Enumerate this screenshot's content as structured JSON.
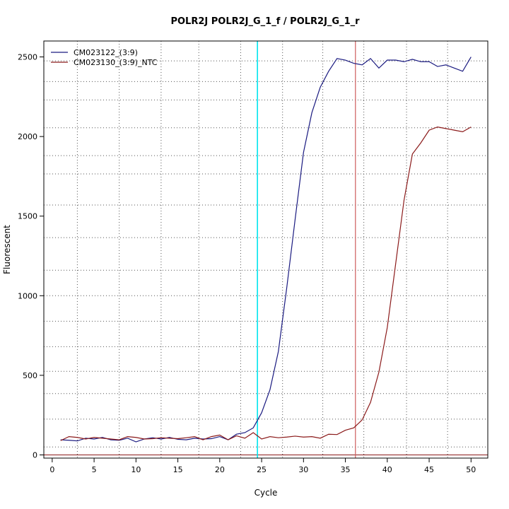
{
  "chart_data": {
    "type": "line",
    "title": "POLR2J  POLR2J_G_1_f / POLR2J_G_1_r",
    "xlabel": "Cycle",
    "ylabel": "Fluorescent",
    "xlim": [
      -1,
      52
    ],
    "ylim": [
      -20,
      2600
    ],
    "x_ticks": [
      0,
      5,
      10,
      15,
      20,
      25,
      30,
      35,
      40,
      45,
      50
    ],
    "x_tick_labels": [
      "0",
      "5",
      "10",
      "15",
      "20",
      "25",
      "30",
      "35",
      "40",
      "45",
      "50"
    ],
    "y_ticks": [
      0,
      500,
      1000,
      1500,
      2000,
      2500
    ],
    "y_tick_labels": [
      "0",
      "500",
      "1000",
      "1500",
      "2000",
      "2500"
    ],
    "grid": true,
    "grid_x": [
      3,
      8,
      13,
      17.5,
      22.5,
      27.5,
      32.3,
      37.2,
      42.3,
      47.2
    ],
    "grid_y": [
      50,
      225,
      385,
      525,
      680,
      840,
      1000,
      1160,
      1365,
      1570,
      1765,
      1880,
      2055,
      2230,
      2345,
      2475
    ],
    "legend_position": "top-left",
    "colors": {
      "series1": "#1a1a80",
      "series2": "#8b1a1a",
      "threshold_cyan": "#00e5ee",
      "threshold_red": "#cd5c5c",
      "baseline": "#8b1a1a"
    },
    "threshold_lines": [
      24.5,
      36.2
    ],
    "baseline_y": 0,
    "x": [
      1,
      2,
      3,
      4,
      5,
      6,
      7,
      8,
      9,
      10,
      11,
      12,
      13,
      14,
      15,
      16,
      17,
      18,
      19,
      20,
      21,
      22,
      23,
      24,
      25,
      26,
      27,
      28,
      29,
      30,
      31,
      32,
      33,
      34,
      35,
      36,
      37,
      38,
      39,
      40,
      41,
      42,
      43,
      44,
      45,
      46,
      47,
      48,
      49,
      50
    ],
    "series": [
      {
        "name": "CM023122_(3:9)",
        "values": [
          95,
          92,
          88,
          105,
          100,
          110,
          95,
          92,
          105,
          82,
          100,
          108,
          100,
          110,
          98,
          95,
          105,
          100,
          102,
          115,
          95,
          130,
          140,
          170,
          265,
          410,
          650,
          1050,
          1480,
          1900,
          2150,
          2310,
          2410,
          2490,
          2480,
          2460,
          2450,
          2490,
          2430,
          2480,
          2480,
          2470,
          2485,
          2470,
          2470,
          2440,
          2450,
          2430,
          2410,
          2500
        ]
      },
      {
        "name": "CM023130_(3:9)_NTC",
        "values": [
          90,
          115,
          110,
          100,
          110,
          105,
          100,
          95,
          115,
          110,
          100,
          102,
          108,
          105,
          102,
          108,
          115,
          95,
          115,
          125,
          95,
          120,
          105,
          140,
          100,
          115,
          108,
          112,
          118,
          112,
          115,
          105,
          130,
          128,
          155,
          170,
          220,
          330,
          520,
          800,
          1200,
          1600,
          1890,
          1960,
          2040,
          2060,
          2050,
          2040,
          2030,
          2060
        ]
      }
    ]
  }
}
